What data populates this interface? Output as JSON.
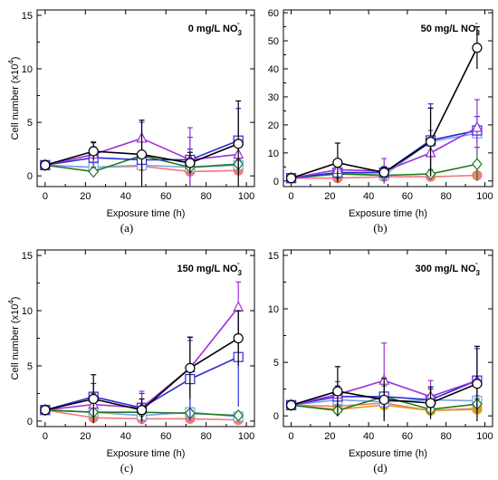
{
  "colors": {
    "black": "#000000",
    "purple": "#9b30d9",
    "blue": "#2b2bd6",
    "green": "#1e7a1e",
    "lightblue": "#7aa2e6",
    "salmon": "#f07878",
    "orange": "#d9a020",
    "salmon_fill": "#f08070"
  },
  "chart_data": [
    {
      "id": "a",
      "type": "line",
      "panel_label": "(a)",
      "title_main": "0 mg/L NO",
      "title_sub": "3",
      "title_sup": "-",
      "xlabel": "Exposure time (h)",
      "ylabel": "Cell number (x10",
      "ylabel_sup": "4",
      "ylabel_tail": ")",
      "xlim": [
        -4,
        104
      ],
      "ylim": [
        -1,
        15.5
      ],
      "xticks": [
        "0",
        "20",
        "40",
        "60",
        "80",
        "100"
      ],
      "yticks": [
        "0",
        "5",
        "10",
        "15"
      ],
      "x": [
        0,
        24,
        48,
        72,
        96
      ],
      "series": [
        {
          "color": "black",
          "marker": "circle",
          "values": [
            1.0,
            2.3,
            2.0,
            1.2,
            3.0
          ],
          "err": [
            0.3,
            0.8,
            3.2,
            1.0,
            4.0
          ]
        },
        {
          "color": "purple",
          "marker": "triangle",
          "values": [
            1.0,
            2.0,
            3.5,
            1.5,
            2.0
          ],
          "err": [
            0.3,
            1.2,
            1.5,
            3.0,
            1.0
          ]
        },
        {
          "color": "blue",
          "marker": "square",
          "values": [
            1.0,
            1.7,
            1.5,
            1.5,
            3.3
          ],
          "err": [
            0.3,
            1.0,
            0.8,
            1.0,
            3.0
          ]
        },
        {
          "color": "green",
          "marker": "diamond",
          "values": [
            1.0,
            0.4,
            1.9,
            0.8,
            1.1
          ],
          "err": [
            0.3,
            0.4,
            1.5,
            2.8,
            0.5
          ]
        },
        {
          "color": "lightblue",
          "marker": "square",
          "values": [
            1.0,
            0.8,
            1.0,
            0.8,
            1.0
          ],
          "err": [
            0.3,
            0.5,
            0.5,
            0.5,
            0.5
          ]
        },
        {
          "color": "salmon",
          "marker": "circle",
          "values": [
            1.0,
            0.8,
            0.9,
            0.4,
            0.5
          ],
          "err": [
            0.3,
            0.3,
            0.3,
            0.2,
            0.3
          ]
        }
      ]
    },
    {
      "id": "b",
      "type": "line",
      "panel_label": "(b)",
      "title_main": "50 mg/L NO",
      "title_sub": "3",
      "title_sup": "-",
      "xlabel": "Exposure time (h)",
      "ylabel": "",
      "xlim": [
        -4,
        104
      ],
      "ylim": [
        -2,
        61
      ],
      "xticks": [
        "0",
        "20",
        "40",
        "60",
        "80",
        "100"
      ],
      "yticks": [
        "0",
        "10",
        "20",
        "30",
        "40",
        "50",
        "60"
      ],
      "x": [
        0,
        24,
        48,
        72,
        96
      ],
      "series": [
        {
          "color": "black",
          "marker": "circle",
          "values": [
            1.0,
            6.5,
            3.0,
            14.0,
            47.5
          ],
          "err": [
            0.5,
            7.0,
            2.0,
            12.0,
            7.5
          ]
        },
        {
          "color": "purple",
          "marker": "triangle",
          "values": [
            1.0,
            4.0,
            3.5,
            10.0,
            19.0
          ],
          "err": [
            0.5,
            3.0,
            4.5,
            8.0,
            10.0
          ]
        },
        {
          "color": "blue",
          "marker": "square",
          "values": [
            1.0,
            3.0,
            3.0,
            14.5,
            18.0
          ],
          "err": [
            0.5,
            2.0,
            2.0,
            13.0,
            5.0
          ]
        },
        {
          "color": "green",
          "marker": "diamond",
          "values": [
            1.0,
            2.5,
            2.0,
            2.5,
            6.0
          ],
          "err": [
            0.5,
            2.0,
            1.0,
            1.5,
            6.0
          ]
        },
        {
          "color": "lightblue",
          "marker": "square",
          "values": [
            1.0,
            3.0,
            2.0,
            14.0,
            17.0
          ],
          "err": [
            0.5,
            1.0,
            1.0,
            2.0,
            3.0
          ]
        },
        {
          "color": "salmon",
          "marker": "circle",
          "values": [
            1.0,
            1.0,
            1.5,
            1.5,
            2.0
          ],
          "err": [
            0.5,
            0.5,
            0.5,
            0.5,
            0.5
          ]
        }
      ]
    },
    {
      "id": "c",
      "type": "line",
      "panel_label": "(c)",
      "title_main": "150 mg/L NO",
      "title_sub": "3",
      "title_sup": "-",
      "xlabel": "Exposure time (h)",
      "ylabel": "Cell number (x10",
      "ylabel_sup": "4",
      "ylabel_tail": ")",
      "xlim": [
        -4,
        104
      ],
      "ylim": [
        -0.5,
        15.5
      ],
      "xticks": [
        "0",
        "20",
        "40",
        "60",
        "80",
        "100"
      ],
      "yticks": [
        "0",
        "5",
        "10",
        "15"
      ],
      "x": [
        0,
        24,
        48,
        72,
        96
      ],
      "series": [
        {
          "color": "black",
          "marker": "circle",
          "values": [
            1.0,
            2.0,
            1.0,
            4.8,
            7.5
          ],
          "err": [
            0.3,
            2.2,
            1.0,
            2.8,
            2.5
          ]
        },
        {
          "color": "purple",
          "marker": "triangle",
          "values": [
            1.0,
            1.5,
            1.2,
            4.8,
            10.3
          ],
          "err": [
            0.3,
            1.0,
            1.5,
            2.5,
            2.3
          ]
        },
        {
          "color": "blue",
          "marker": "square",
          "values": [
            1.0,
            2.2,
            1.2,
            3.8,
            5.8
          ],
          "err": [
            0.3,
            1.2,
            1.3,
            3.8,
            4.5
          ]
        },
        {
          "color": "green",
          "marker": "diamond",
          "values": [
            1.0,
            0.8,
            0.8,
            0.7,
            0.5
          ],
          "err": [
            0.3,
            0.4,
            0.5,
            0.3,
            0.3
          ]
        },
        {
          "color": "lightblue",
          "marker": "square",
          "values": [
            1.0,
            0.8,
            0.5,
            0.8,
            0.4
          ],
          "err": [
            0.3,
            0.3,
            0.3,
            0.3,
            0.3
          ]
        },
        {
          "color": "salmon",
          "marker": "circle",
          "values": [
            1.0,
            0.3,
            0.2,
            0.2,
            0.1
          ],
          "err": [
            0.3,
            0.2,
            0.2,
            0.2,
            0.1
          ]
        }
      ]
    },
    {
      "id": "d",
      "type": "line",
      "panel_label": "(d)",
      "title_main": "300 mg/L NO",
      "title_sub": "3",
      "title_sup": "-",
      "xlabel": "Exposure time (h)",
      "ylabel": "",
      "xlim": [
        -4,
        104
      ],
      "ylim": [
        -1,
        15.5
      ],
      "xticks": [
        "0",
        "20",
        "40",
        "60",
        "80",
        "100"
      ],
      "yticks": [
        "0",
        "5",
        "10",
        "15"
      ],
      "x": [
        0,
        24,
        48,
        72,
        96
      ],
      "series": [
        {
          "color": "black",
          "marker": "circle",
          "values": [
            1.0,
            2.3,
            1.5,
            1.2,
            3.0
          ],
          "err": [
            0.3,
            2.3,
            2.0,
            1.5,
            3.5
          ]
        },
        {
          "color": "purple",
          "marker": "triangle",
          "values": [
            1.0,
            2.0,
            3.3,
            1.8,
            3.3
          ],
          "err": [
            0.3,
            1.2,
            3.5,
            1.5,
            3.0
          ]
        },
        {
          "color": "blue",
          "marker": "square",
          "values": [
            1.0,
            1.8,
            1.8,
            1.5,
            3.3
          ],
          "err": [
            0.3,
            1.0,
            1.2,
            1.0,
            3.0
          ]
        },
        {
          "color": "green",
          "marker": "diamond",
          "values": [
            1.0,
            0.5,
            1.8,
            0.6,
            1.1
          ],
          "err": [
            0.3,
            0.4,
            1.0,
            0.5,
            0.5
          ]
        },
        {
          "color": "lightblue",
          "marker": "square",
          "values": [
            1.0,
            1.5,
            1.3,
            1.5,
            1.4
          ],
          "err": [
            0.3,
            0.5,
            0.5,
            0.5,
            0.5
          ]
        },
        {
          "color": "orange",
          "marker": "circle",
          "values": [
            1.0,
            0.6,
            1.0,
            0.5,
            0.6
          ],
          "err": [
            0.3,
            0.3,
            0.3,
            0.3,
            0.3
          ]
        },
        {
          "color": "salmon",
          "marker": "circle",
          "values": [
            1.0,
            0.9,
            1.2,
            0.5,
            0.7
          ],
          "err": [
            0.3,
            0.3,
            0.3,
            0.3,
            0.3
          ]
        }
      ]
    }
  ]
}
